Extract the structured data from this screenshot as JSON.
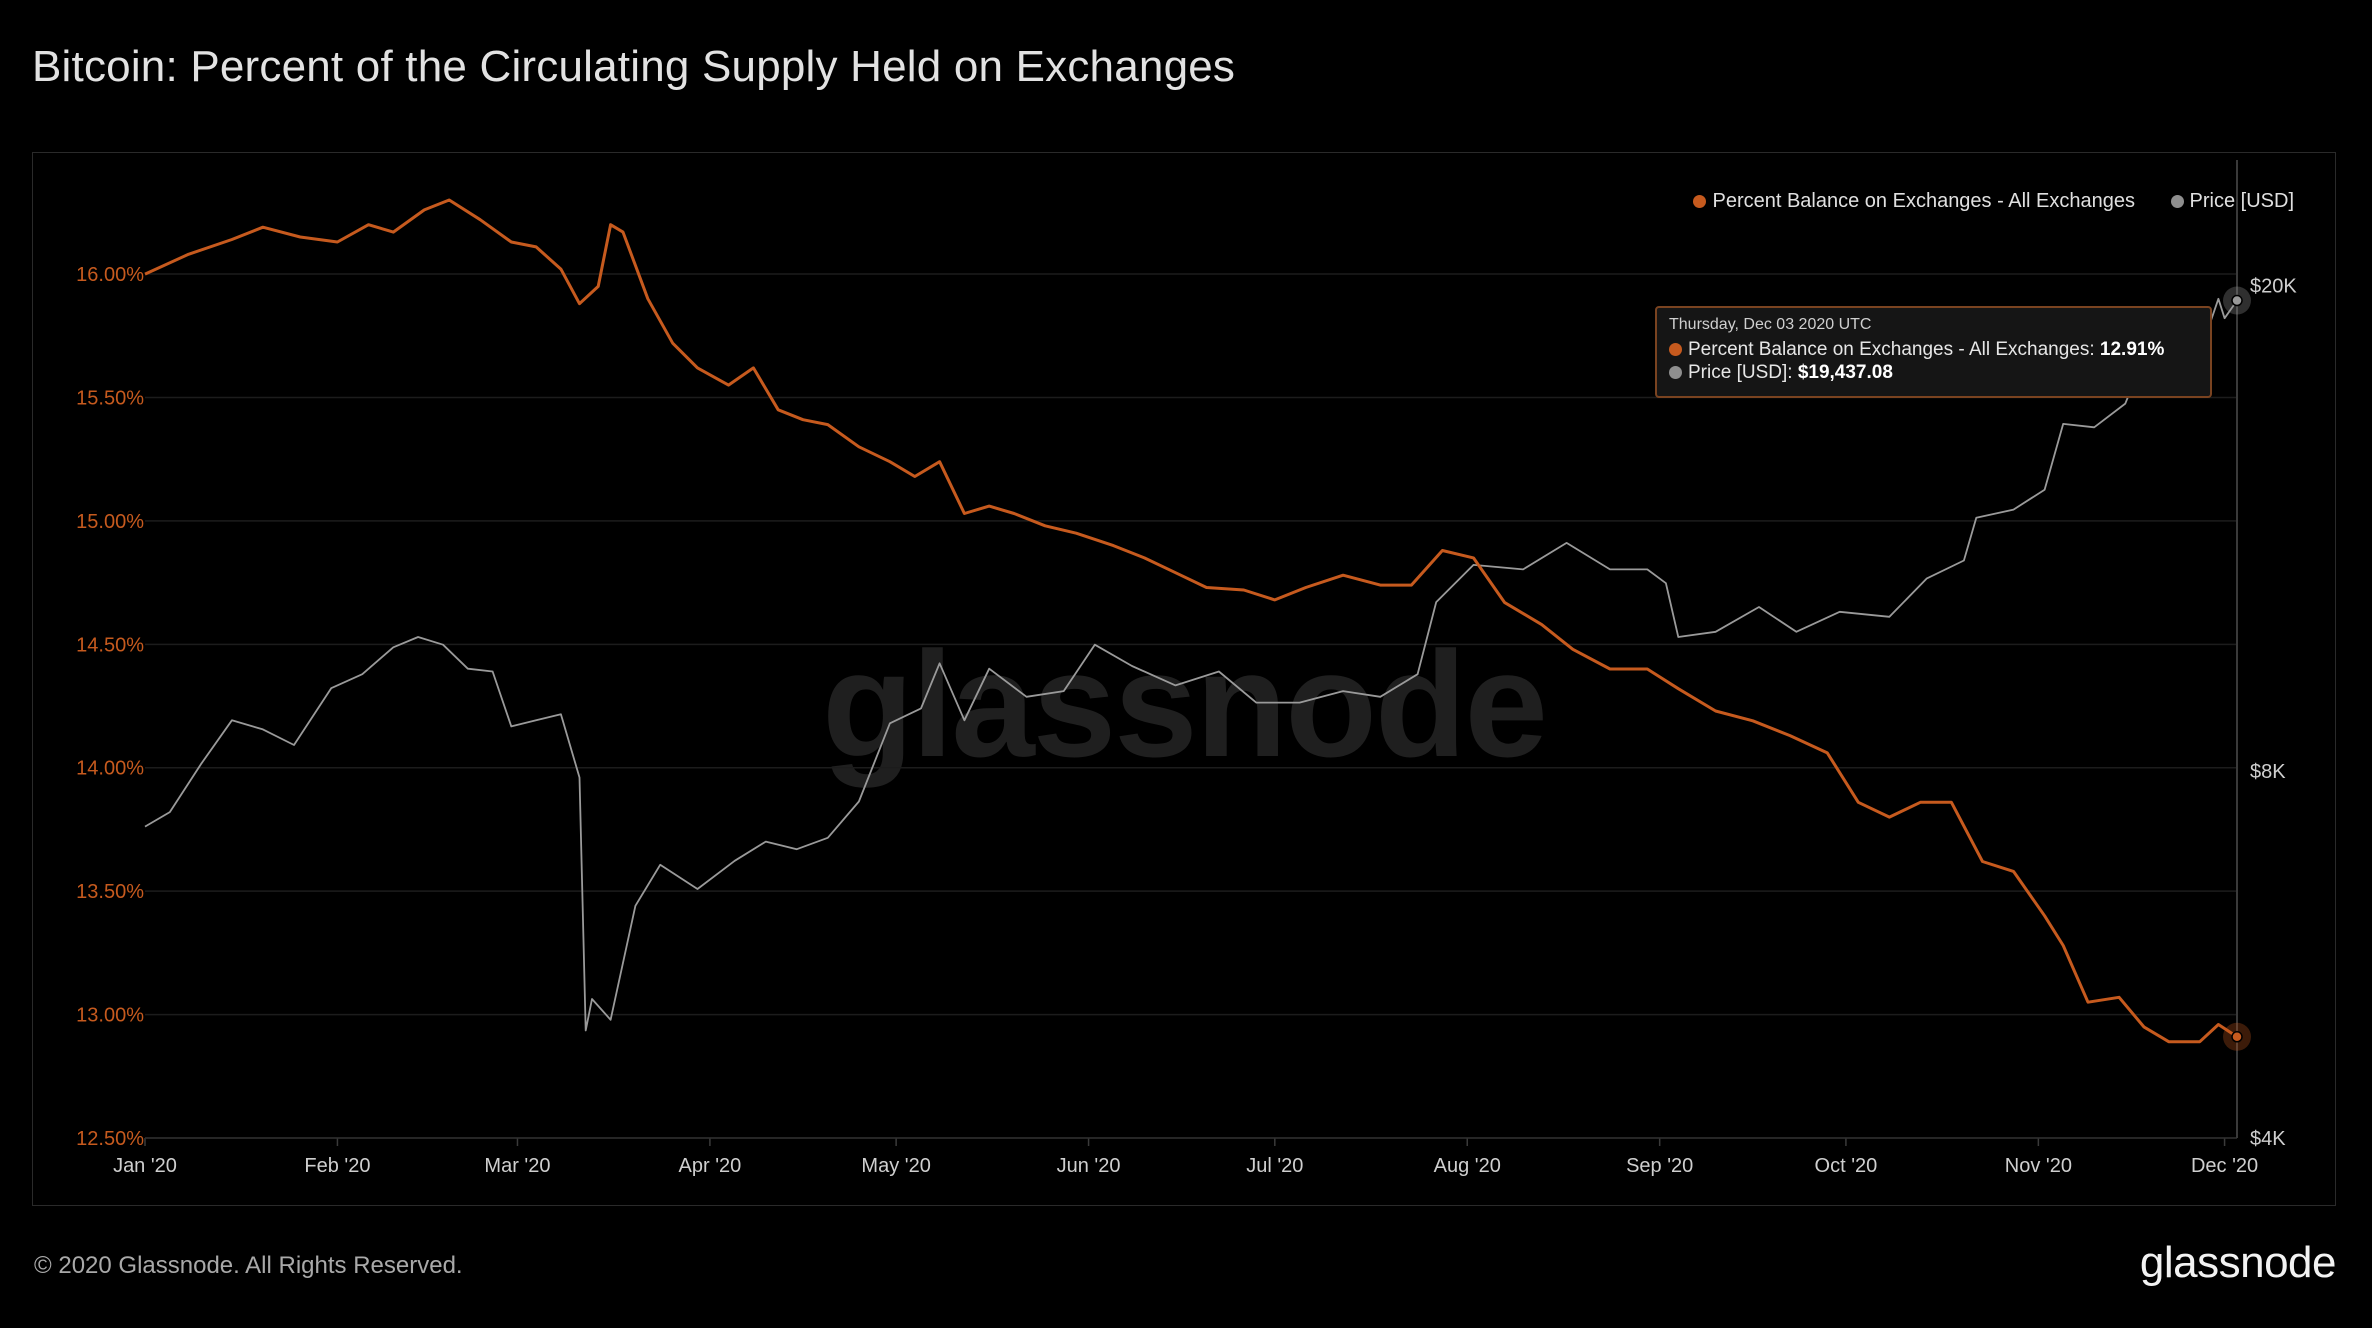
{
  "header": {
    "title": "Bitcoin: Percent of the Circulating Supply Held on Exchanges"
  },
  "footer": {
    "copyright": "© 2020 Glassnode. All Rights Reserved.",
    "logo_text": "glassnode"
  },
  "watermark": "glassnode",
  "colors": {
    "background": "#000000",
    "balance": "#c65a1e",
    "price": "#9a9a9a",
    "grid": "#1c1c1c",
    "left_axis_text": "#c65a1e"
  },
  "legend": [
    {
      "label": "Percent Balance on Exchanges - All Exchanges",
      "color": "#c65a1e"
    },
    {
      "label": "Price [USD]",
      "color": "#8e8e8e"
    }
  ],
  "tooltip": {
    "date": "Thursday, Dec 03 2020 UTC",
    "rows": [
      {
        "label": "Percent Balance on Exchanges - All Exchanges: ",
        "value": "12.91%",
        "color": "#c65a1e"
      },
      {
        "label": "Price [USD]: ",
        "value": "$19,437.08",
        "color": "#8e8e8e"
      }
    ]
  },
  "chart_data": {
    "type": "line",
    "title": "Bitcoin: Percent of the Circulating Supply Held on Exchanges",
    "x_ticks": [
      "Jan '20",
      "Feb '20",
      "Mar '20",
      "Apr '20",
      "May '20",
      "Jun '20",
      "Jul '20",
      "Aug '20",
      "Sep '20",
      "Oct '20",
      "Nov '20",
      "Dec '20"
    ],
    "x_range": [
      "2020-01-01",
      "2020-12-03"
    ],
    "y_left": {
      "ticks": [
        "12.50%",
        "13.00%",
        "13.50%",
        "14.00%",
        "14.50%",
        "15.00%",
        "15.50%",
        "16.00%"
      ],
      "range": [
        12.5,
        16.3
      ]
    },
    "y_right": {
      "scale": "log",
      "ticks": [
        "$4K",
        "$8K",
        "$20K"
      ],
      "tick_values": [
        4000,
        8000,
        20000
      ],
      "range": [
        4000,
        23500
      ]
    },
    "grid": true,
    "legend_position": "top-right",
    "series": [
      {
        "name": "Percent Balance on Exchanges - All Exchanges",
        "axis": "left",
        "points": [
          [
            "2020-01-01",
            16.0
          ],
          [
            "2020-01-08",
            16.08
          ],
          [
            "2020-01-15",
            16.14
          ],
          [
            "2020-01-20",
            16.19
          ],
          [
            "2020-01-26",
            16.15
          ],
          [
            "2020-02-01",
            16.13
          ],
          [
            "2020-02-06",
            16.2
          ],
          [
            "2020-02-10",
            16.17
          ],
          [
            "2020-02-15",
            16.26
          ],
          [
            "2020-02-19",
            16.3
          ],
          [
            "2020-02-24",
            16.22
          ],
          [
            "2020-02-29",
            16.13
          ],
          [
            "2020-03-04",
            16.11
          ],
          [
            "2020-03-08",
            16.02
          ],
          [
            "2020-03-11",
            15.88
          ],
          [
            "2020-03-14",
            15.95
          ],
          [
            "2020-03-16",
            16.2
          ],
          [
            "2020-03-18",
            16.17
          ],
          [
            "2020-03-22",
            15.9
          ],
          [
            "2020-03-26",
            15.72
          ],
          [
            "2020-03-30",
            15.62
          ],
          [
            "2020-04-04",
            15.55
          ],
          [
            "2020-04-08",
            15.62
          ],
          [
            "2020-04-12",
            15.45
          ],
          [
            "2020-04-16",
            15.41
          ],
          [
            "2020-04-20",
            15.39
          ],
          [
            "2020-04-25",
            15.3
          ],
          [
            "2020-04-30",
            15.24
          ],
          [
            "2020-05-04",
            15.18
          ],
          [
            "2020-05-08",
            15.24
          ],
          [
            "2020-05-12",
            15.03
          ],
          [
            "2020-05-16",
            15.06
          ],
          [
            "2020-05-20",
            15.03
          ],
          [
            "2020-05-25",
            14.98
          ],
          [
            "2020-05-30",
            14.95
          ],
          [
            "2020-06-05",
            14.9
          ],
          [
            "2020-06-10",
            14.85
          ],
          [
            "2020-06-15",
            14.79
          ],
          [
            "2020-06-20",
            14.73
          ],
          [
            "2020-06-26",
            14.72
          ],
          [
            "2020-07-01",
            14.68
          ],
          [
            "2020-07-06",
            14.73
          ],
          [
            "2020-07-12",
            14.78
          ],
          [
            "2020-07-18",
            14.74
          ],
          [
            "2020-07-23",
            14.74
          ],
          [
            "2020-07-28",
            14.88
          ],
          [
            "2020-08-02",
            14.85
          ],
          [
            "2020-08-07",
            14.67
          ],
          [
            "2020-08-13",
            14.58
          ],
          [
            "2020-08-18",
            14.48
          ],
          [
            "2020-08-24",
            14.4
          ],
          [
            "2020-08-30",
            14.4
          ],
          [
            "2020-09-04",
            14.32
          ],
          [
            "2020-09-10",
            14.23
          ],
          [
            "2020-09-16",
            14.19
          ],
          [
            "2020-09-22",
            14.13
          ],
          [
            "2020-09-28",
            14.06
          ],
          [
            "2020-10-03",
            13.86
          ],
          [
            "2020-10-08",
            13.8
          ],
          [
            "2020-10-13",
            13.86
          ],
          [
            "2020-10-18",
            13.86
          ],
          [
            "2020-10-23",
            13.62
          ],
          [
            "2020-10-28",
            13.58
          ],
          [
            "2020-11-02",
            13.4
          ],
          [
            "2020-11-05",
            13.28
          ],
          [
            "2020-11-09",
            13.05
          ],
          [
            "2020-11-14",
            13.07
          ],
          [
            "2020-11-18",
            12.95
          ],
          [
            "2020-11-22",
            12.89
          ],
          [
            "2020-11-27",
            12.89
          ],
          [
            "2020-11-30",
            12.96
          ],
          [
            "2020-12-03",
            12.91
          ]
        ]
      },
      {
        "name": "Price [USD]",
        "axis": "right",
        "points": [
          [
            "2020-01-01",
            7200
          ],
          [
            "2020-01-05",
            7400
          ],
          [
            "2020-01-10",
            8100
          ],
          [
            "2020-01-15",
            8800
          ],
          [
            "2020-01-20",
            8650
          ],
          [
            "2020-01-25",
            8400
          ],
          [
            "2020-01-31",
            9350
          ],
          [
            "2020-02-05",
            9600
          ],
          [
            "2020-02-10",
            10100
          ],
          [
            "2020-02-14",
            10300
          ],
          [
            "2020-02-18",
            10150
          ],
          [
            "2020-02-22",
            9700
          ],
          [
            "2020-02-26",
            9650
          ],
          [
            "2020-02-29",
            8700
          ],
          [
            "2020-03-04",
            8800
          ],
          [
            "2020-03-08",
            8900
          ],
          [
            "2020-03-11",
            7900
          ],
          [
            "2020-03-12",
            4900
          ],
          [
            "2020-03-13",
            5200
          ],
          [
            "2020-03-16",
            5000
          ],
          [
            "2020-03-20",
            6200
          ],
          [
            "2020-03-24",
            6700
          ],
          [
            "2020-03-30",
            6400
          ],
          [
            "2020-04-05",
            6750
          ],
          [
            "2020-04-10",
            7000
          ],
          [
            "2020-04-15",
            6900
          ],
          [
            "2020-04-20",
            7050
          ],
          [
            "2020-04-25",
            7550
          ],
          [
            "2020-04-30",
            8750
          ],
          [
            "2020-05-05",
            9000
          ],
          [
            "2020-05-08",
            9800
          ],
          [
            "2020-05-12",
            8800
          ],
          [
            "2020-05-16",
            9700
          ],
          [
            "2020-05-22",
            9200
          ],
          [
            "2020-05-28",
            9300
          ],
          [
            "2020-06-02",
            10150
          ],
          [
            "2020-06-08",
            9750
          ],
          [
            "2020-06-15",
            9400
          ],
          [
            "2020-06-22",
            9650
          ],
          [
            "2020-06-28",
            9100
          ],
          [
            "2020-07-05",
            9100
          ],
          [
            "2020-07-12",
            9300
          ],
          [
            "2020-07-18",
            9200
          ],
          [
            "2020-07-24",
            9600
          ],
          [
            "2020-07-27",
            11000
          ],
          [
            "2020-08-02",
            11800
          ],
          [
            "2020-08-10",
            11700
          ],
          [
            "2020-08-17",
            12300
          ],
          [
            "2020-08-24",
            11700
          ],
          [
            "2020-08-30",
            11700
          ],
          [
            "2020-09-02",
            11400
          ],
          [
            "2020-09-04",
            10300
          ],
          [
            "2020-09-10",
            10400
          ],
          [
            "2020-09-17",
            10900
          ],
          [
            "2020-09-23",
            10400
          ],
          [
            "2020-09-30",
            10800
          ],
          [
            "2020-10-08",
            10700
          ],
          [
            "2020-10-14",
            11500
          ],
          [
            "2020-10-20",
            11900
          ],
          [
            "2020-10-22",
            12900
          ],
          [
            "2020-10-28",
            13100
          ],
          [
            "2020-11-02",
            13600
          ],
          [
            "2020-11-05",
            15400
          ],
          [
            "2020-11-10",
            15300
          ],
          [
            "2020-11-15",
            16000
          ],
          [
            "2020-11-20",
            18500
          ],
          [
            "2020-11-24",
            19200
          ],
          [
            "2020-11-26",
            17000
          ],
          [
            "2020-11-30",
            19500
          ],
          [
            "2020-12-01",
            18800
          ],
          [
            "2020-12-03",
            19437
          ]
        ]
      }
    ]
  }
}
